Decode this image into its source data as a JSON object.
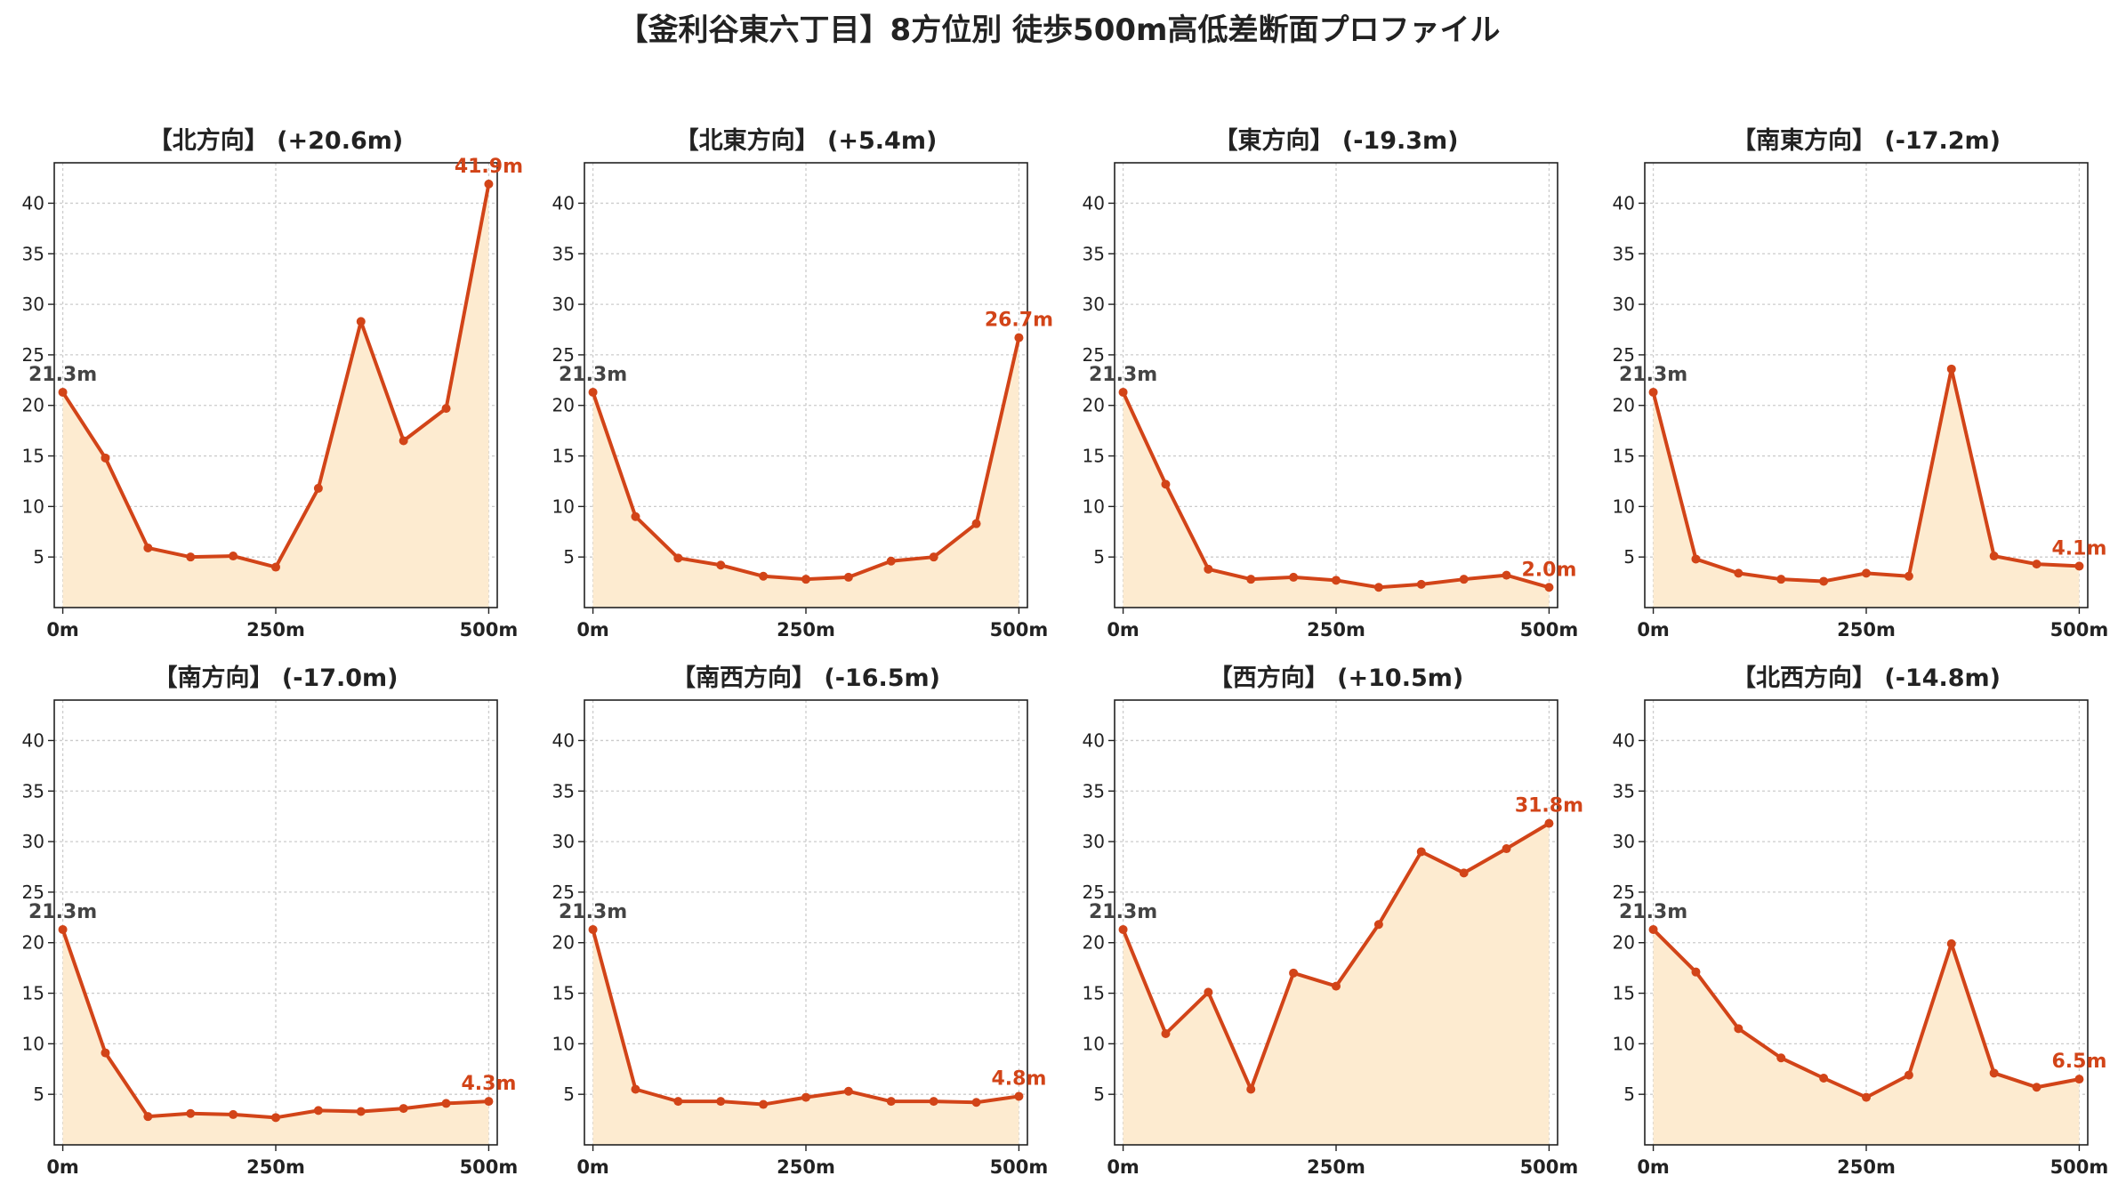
{
  "title": "【釜利谷東六丁目】8方位別 徒歩500m高低差断面プロファイル",
  "colors": {
    "line": "#d24418",
    "fill": "#fdebd0",
    "start_label": "#444444",
    "end_label": "#d24418",
    "grid": "#cccccc",
    "axis": "#222222"
  },
  "chart_data": [
    {
      "type": "area",
      "title": "【北方向】 (+20.6m)",
      "start_label": "21.3m",
      "end_label": "41.9m",
      "x": [
        0,
        50,
        100,
        150,
        200,
        250,
        300,
        350,
        400,
        450,
        500
      ],
      "y": [
        21.3,
        14.8,
        5.9,
        5.0,
        5.1,
        4.0,
        11.8,
        28.3,
        16.5,
        19.7,
        41.9
      ],
      "xticks": [
        "0m",
        "250m",
        "500m"
      ],
      "yticks": [
        5,
        10,
        15,
        20,
        25,
        30,
        35,
        40
      ],
      "ylim": [
        0,
        44
      ],
      "xlim": [
        -10,
        510
      ],
      "grid": true
    },
    {
      "type": "area",
      "title": "【北東方向】 (+5.4m)",
      "start_label": "21.3m",
      "end_label": "26.7m",
      "x": [
        0,
        50,
        100,
        150,
        200,
        250,
        300,
        350,
        400,
        450,
        500
      ],
      "y": [
        21.3,
        9.0,
        4.9,
        4.2,
        3.1,
        2.8,
        3.0,
        4.6,
        5.0,
        8.3,
        26.7
      ],
      "xticks": [
        "0m",
        "250m",
        "500m"
      ],
      "yticks": [
        5,
        10,
        15,
        20,
        25,
        30,
        35,
        40
      ],
      "ylim": [
        0,
        44
      ],
      "xlim": [
        -10,
        510
      ],
      "grid": true
    },
    {
      "type": "area",
      "title": "【東方向】 (-19.3m)",
      "start_label": "21.3m",
      "end_label": "2.0m",
      "x": [
        0,
        50,
        100,
        150,
        200,
        250,
        300,
        350,
        400,
        450,
        500
      ],
      "y": [
        21.3,
        12.2,
        3.8,
        2.8,
        3.0,
        2.7,
        2.0,
        2.3,
        2.8,
        3.2,
        2.0
      ],
      "xticks": [
        "0m",
        "250m",
        "500m"
      ],
      "yticks": [
        5,
        10,
        15,
        20,
        25,
        30,
        35,
        40
      ],
      "ylim": [
        0,
        44
      ],
      "xlim": [
        -10,
        510
      ],
      "grid": true
    },
    {
      "type": "area",
      "title": "【南東方向】 (-17.2m)",
      "start_label": "21.3m",
      "end_label": "4.1m",
      "x": [
        0,
        50,
        100,
        150,
        200,
        250,
        300,
        350,
        400,
        450,
        500
      ],
      "y": [
        21.3,
        4.8,
        3.4,
        2.8,
        2.6,
        3.4,
        3.1,
        23.6,
        5.1,
        4.3,
        4.1
      ],
      "xticks": [
        "0m",
        "250m",
        "500m"
      ],
      "yticks": [
        5,
        10,
        15,
        20,
        25,
        30,
        35,
        40
      ],
      "ylim": [
        0,
        44
      ],
      "xlim": [
        -10,
        510
      ],
      "grid": true
    },
    {
      "type": "area",
      "title": "【南方向】 (-17.0m)",
      "start_label": "21.3m",
      "end_label": "4.3m",
      "x": [
        0,
        50,
        100,
        150,
        200,
        250,
        300,
        350,
        400,
        450,
        500
      ],
      "y": [
        21.3,
        9.1,
        2.8,
        3.1,
        3.0,
        2.7,
        3.4,
        3.3,
        3.6,
        4.1,
        4.3
      ],
      "xticks": [
        "0m",
        "250m",
        "500m"
      ],
      "yticks": [
        5,
        10,
        15,
        20,
        25,
        30,
        35,
        40
      ],
      "ylim": [
        0,
        44
      ],
      "xlim": [
        -10,
        510
      ],
      "grid": true
    },
    {
      "type": "area",
      "title": "【南西方向】 (-16.5m)",
      "start_label": "21.3m",
      "end_label": "4.8m",
      "x": [
        0,
        50,
        100,
        150,
        200,
        250,
        300,
        350,
        400,
        450,
        500
      ],
      "y": [
        21.3,
        5.5,
        4.3,
        4.3,
        4.0,
        4.7,
        5.3,
        4.3,
        4.3,
        4.2,
        4.8
      ],
      "xticks": [
        "0m",
        "250m",
        "500m"
      ],
      "yticks": [
        5,
        10,
        15,
        20,
        25,
        30,
        35,
        40
      ],
      "ylim": [
        0,
        44
      ],
      "xlim": [
        -10,
        510
      ],
      "grid": true
    },
    {
      "type": "area",
      "title": "【西方向】 (+10.5m)",
      "start_label": "21.3m",
      "end_label": "31.8m",
      "x": [
        0,
        50,
        100,
        150,
        200,
        250,
        300,
        350,
        400,
        450,
        500
      ],
      "y": [
        21.3,
        11.0,
        15.1,
        5.5,
        17.0,
        15.7,
        21.8,
        29.0,
        26.9,
        29.3,
        31.8
      ],
      "xticks": [
        "0m",
        "250m",
        "500m"
      ],
      "yticks": [
        5,
        10,
        15,
        20,
        25,
        30,
        35,
        40
      ],
      "ylim": [
        0,
        44
      ],
      "xlim": [
        -10,
        510
      ],
      "grid": true
    },
    {
      "type": "area",
      "title": "【北西方向】 (-14.8m)",
      "start_label": "21.3m",
      "end_label": "6.5m",
      "x": [
        0,
        50,
        100,
        150,
        200,
        250,
        300,
        350,
        400,
        450,
        500
      ],
      "y": [
        21.3,
        17.1,
        11.5,
        8.6,
        6.6,
        4.7,
        6.9,
        19.9,
        7.1,
        5.7,
        6.5
      ],
      "xticks": [
        "0m",
        "250m",
        "500m"
      ],
      "yticks": [
        5,
        10,
        15,
        20,
        25,
        30,
        35,
        40
      ],
      "ylim": [
        0,
        44
      ],
      "xlim": [
        -10,
        510
      ],
      "grid": true
    }
  ]
}
